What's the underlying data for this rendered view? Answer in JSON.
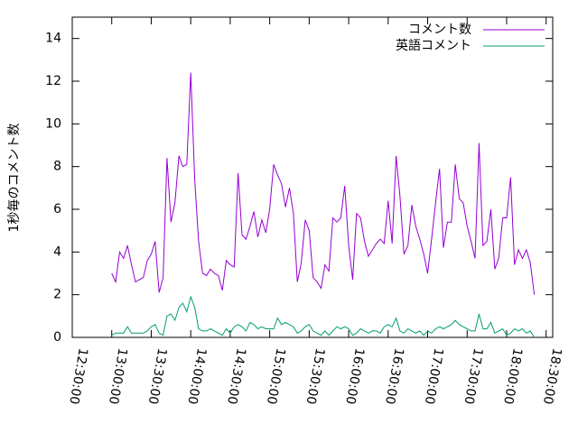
{
  "chart_data": {
    "type": "line",
    "ylabel": "1秒毎のコメント数",
    "x": [
      780,
      783,
      786,
      789,
      792,
      795,
      798,
      801,
      804,
      807,
      810,
      813,
      816,
      819,
      822,
      825,
      828,
      831,
      834,
      837,
      840,
      843,
      846,
      849,
      852,
      855,
      858,
      861,
      864,
      867,
      870,
      873,
      876,
      879,
      882,
      885,
      888,
      891,
      894,
      897,
      900,
      903,
      906,
      909,
      912,
      915,
      918,
      921,
      924,
      927,
      930,
      933,
      936,
      939,
      942,
      945,
      948,
      951,
      954,
      957,
      960,
      963,
      966,
      969,
      972,
      975,
      978,
      981,
      984,
      987,
      990,
      993,
      996,
      999,
      1002,
      1005,
      1008,
      1011,
      1014,
      1017,
      1020,
      1023,
      1026,
      1029,
      1032,
      1035,
      1038,
      1041,
      1044,
      1047,
      1050,
      1053,
      1056,
      1059,
      1062,
      1065,
      1068,
      1071,
      1074,
      1077,
      1080,
      1083,
      1086,
      1089,
      1092,
      1095,
      1098,
      1101
    ],
    "series": [
      {
        "name": "コメント数",
        "color": "#9400d3",
        "values": [
          3.0,
          2.6,
          4.0,
          3.7,
          4.3,
          3.4,
          2.6,
          2.7,
          2.8,
          3.6,
          3.9,
          4.5,
          2.1,
          2.8,
          8.4,
          5.4,
          6.3,
          8.5,
          8.0,
          8.1,
          12.4,
          7.4,
          4.5,
          3.0,
          2.9,
          3.2,
          3.0,
          2.9,
          2.2,
          3.6,
          3.4,
          3.3,
          7.7,
          4.8,
          4.6,
          5.2,
          5.9,
          4.7,
          5.5,
          4.9,
          6.0,
          8.1,
          7.6,
          7.2,
          6.1,
          7.0,
          5.8,
          2.6,
          3.5,
          5.5,
          5.0,
          2.8,
          2.6,
          2.3,
          3.4,
          3.1,
          5.6,
          5.4,
          5.6,
          7.1,
          4.3,
          2.7,
          5.8,
          5.6,
          4.5,
          3.8,
          4.1,
          4.4,
          4.6,
          4.4,
          6.4,
          4.4,
          8.5,
          6.6,
          3.9,
          4.3,
          6.2,
          5.2,
          4.6,
          3.9,
          3.0,
          4.6,
          6.3,
          7.9,
          4.2,
          5.4,
          5.4,
          8.1,
          6.5,
          6.3,
          5.2,
          4.5,
          3.7,
          9.1,
          4.3,
          4.5,
          6.0,
          3.2,
          3.7,
          5.6,
          5.6,
          7.5,
          3.4,
          4.1,
          3.7,
          4.1,
          3.5,
          2.0
        ]
      },
      {
        "name": "英語コメント",
        "color": "#009e73",
        "values": [
          0.1,
          0.2,
          0.2,
          0.2,
          0.5,
          0.2,
          0.2,
          0.2,
          0.2,
          0.3,
          0.5,
          0.6,
          0.2,
          0.1,
          1.0,
          1.1,
          0.8,
          1.4,
          1.6,
          1.2,
          1.9,
          1.4,
          0.4,
          0.3,
          0.3,
          0.4,
          0.3,
          0.2,
          0.1,
          0.4,
          0.2,
          0.5,
          0.6,
          0.5,
          0.3,
          0.7,
          0.6,
          0.4,
          0.5,
          0.4,
          0.4,
          0.4,
          0.9,
          0.6,
          0.7,
          0.6,
          0.5,
          0.2,
          0.3,
          0.5,
          0.6,
          0.3,
          0.2,
          0.1,
          0.3,
          0.1,
          0.3,
          0.5,
          0.4,
          0.5,
          0.4,
          0.1,
          0.2,
          0.4,
          0.3,
          0.2,
          0.3,
          0.3,
          0.2,
          0.5,
          0.6,
          0.5,
          0.9,
          0.3,
          0.2,
          0.4,
          0.3,
          0.2,
          0.3,
          0.1,
          0.3,
          0.2,
          0.4,
          0.5,
          0.4,
          0.5,
          0.6,
          0.8,
          0.6,
          0.5,
          0.4,
          0.3,
          0.3,
          1.1,
          0.4,
          0.4,
          0.7,
          0.2,
          0.3,
          0.4,
          0.1,
          0.2,
          0.4,
          0.3,
          0.4,
          0.2,
          0.3,
          0.0
        ]
      }
    ],
    "xlim": [
      750,
      1115
    ],
    "xticks": [
      {
        "value": 750,
        "label": "12:30:00"
      },
      {
        "value": 780,
        "label": "13:00:00"
      },
      {
        "value": 810,
        "label": "13:30:00"
      },
      {
        "value": 840,
        "label": "14:00:00"
      },
      {
        "value": 870,
        "label": "14:30:00"
      },
      {
        "value": 900,
        "label": "15:00:00"
      },
      {
        "value": 930,
        "label": "15:30:00"
      },
      {
        "value": 960,
        "label": "16:00:00"
      },
      {
        "value": 990,
        "label": "16:30:00"
      },
      {
        "value": 1020,
        "label": "17:00:00"
      },
      {
        "value": 1050,
        "label": "17:30:00"
      },
      {
        "value": 1080,
        "label": "18:00:00"
      },
      {
        "value": 1110,
        "label": "18:30:00"
      }
    ],
    "ylim": [
      0,
      15
    ],
    "yticks": [
      0,
      2,
      4,
      6,
      8,
      10,
      12,
      14
    ],
    "legend": "upper right"
  }
}
